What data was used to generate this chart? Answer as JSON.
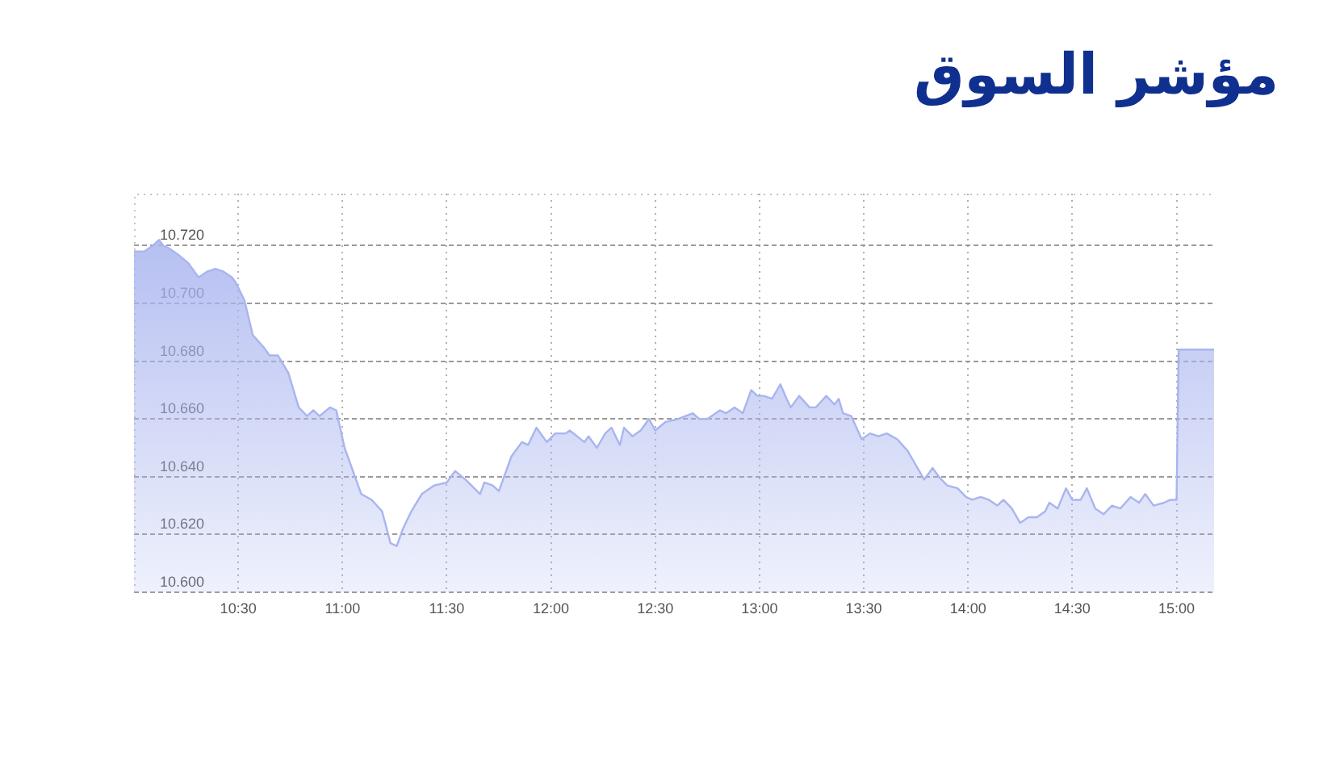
{
  "chart_data": {
    "type": "area",
    "title": "مؤشر السوق",
    "x": [
      10.0,
      10.05,
      10.09,
      10.12,
      10.14,
      10.17,
      10.21,
      10.26,
      10.31,
      10.35,
      10.39,
      10.43,
      10.47,
      10.49,
      10.53,
      10.57,
      10.62,
      10.65,
      10.69,
      10.74,
      10.79,
      10.83,
      10.86,
      10.89,
      10.94,
      10.97,
      11.01,
      11.09,
      11.14,
      11.19,
      11.23,
      11.26,
      11.29,
      11.33,
      11.38,
      11.44,
      11.5,
      11.54,
      11.59,
      11.66,
      11.68,
      11.72,
      11.75,
      11.81,
      11.86,
      11.89,
      11.93,
      11.98,
      12.02,
      12.07,
      12.09,
      12.16,
      12.18,
      12.22,
      12.26,
      12.29,
      12.33,
      12.35,
      12.39,
      12.43,
      12.47,
      12.5,
      12.55,
      12.61,
      12.68,
      12.71,
      12.75,
      12.81,
      12.84,
      12.88,
      12.92,
      12.96,
      12.99,
      13.02,
      13.06,
      13.1,
      13.13,
      13.15,
      13.19,
      13.24,
      13.27,
      13.32,
      13.36,
      13.38,
      13.4,
      13.44,
      13.49,
      13.53,
      13.57,
      13.61,
      13.66,
      13.71,
      13.75,
      13.79,
      13.83,
      13.86,
      13.9,
      13.95,
      13.99,
      14.02,
      14.06,
      14.1,
      14.14,
      14.17,
      14.21,
      14.25,
      14.29,
      14.33,
      14.37,
      14.39,
      14.43,
      14.47,
      14.5,
      14.54,
      14.57,
      14.61,
      14.65,
      14.69,
      14.73,
      14.78,
      14.82,
      14.85,
      14.89,
      14.94,
      14.97,
      15.0,
      15.01,
      15.18
    ],
    "series": [
      {
        "color": "#a9b5ef",
        "values": [
          10.718,
          10.718,
          10.72,
          10.722,
          10.72,
          10.719,
          10.717,
          10.714,
          10.709,
          10.711,
          10.712,
          10.711,
          10.709,
          10.707,
          10.701,
          10.689,
          10.685,
          10.682,
          10.682,
          10.676,
          10.664,
          10.661,
          10.663,
          10.661,
          10.664,
          10.663,
          10.65,
          10.634,
          10.632,
          10.628,
          10.617,
          10.616,
          10.622,
          10.628,
          10.634,
          10.637,
          10.638,
          10.642,
          10.639,
          10.634,
          10.638,
          10.637,
          10.635,
          10.647,
          10.652,
          10.651,
          10.657,
          10.652,
          10.655,
          10.655,
          10.656,
          10.652,
          10.654,
          10.65,
          10.655,
          10.657,
          10.651,
          10.657,
          10.654,
          10.656,
          10.66,
          10.656,
          10.659,
          10.66,
          10.662,
          10.66,
          10.66,
          10.663,
          10.662,
          10.664,
          10.662,
          10.67,
          10.668,
          10.668,
          10.667,
          10.672,
          10.667,
          10.664,
          10.668,
          10.664,
          10.664,
          10.668,
          10.665,
          10.667,
          10.662,
          10.661,
          10.653,
          10.655,
          10.654,
          10.655,
          10.653,
          10.649,
          10.644,
          10.639,
          10.643,
          10.64,
          10.637,
          10.636,
          10.633,
          10.632,
          10.633,
          10.632,
          10.63,
          10.632,
          10.629,
          10.624,
          10.626,
          10.626,
          10.628,
          10.631,
          10.629,
          10.636,
          10.632,
          10.632,
          10.636,
          10.629,
          10.627,
          10.63,
          10.629,
          10.633,
          10.631,
          10.634,
          10.63,
          10.631,
          10.632,
          10.632,
          10.684,
          10.684
        ]
      }
    ],
    "xlim": [
      10,
      15.18
    ],
    "xticks": [
      {
        "value": 10.5,
        "label": "10:30"
      },
      {
        "value": 11,
        "label": "11:00"
      },
      {
        "value": 11.5,
        "label": "11:30"
      },
      {
        "value": 12,
        "label": "12:00"
      },
      {
        "value": 12.5,
        "label": "12:30"
      },
      {
        "value": 13,
        "label": "13:00"
      },
      {
        "value": 13.5,
        "label": "13:30"
      },
      {
        "value": 14,
        "label": "14:00"
      },
      {
        "value": 14.5,
        "label": "14:30"
      },
      {
        "value": 15,
        "label": "15:00"
      }
    ],
    "ylim": [
      10.6,
      10.738
    ],
    "yticks": [
      {
        "value": 10.6,
        "label": "10.600"
      },
      {
        "value": 10.62,
        "label": "10.620"
      },
      {
        "value": 10.64,
        "label": "10.640"
      },
      {
        "value": 10.66,
        "label": "10.660"
      },
      {
        "value": 10.68,
        "label": "10.680"
      },
      {
        "value": 10.7,
        "label": "10.700"
      },
      {
        "value": 10.72,
        "label": "10.720"
      }
    ],
    "grid": true
  }
}
